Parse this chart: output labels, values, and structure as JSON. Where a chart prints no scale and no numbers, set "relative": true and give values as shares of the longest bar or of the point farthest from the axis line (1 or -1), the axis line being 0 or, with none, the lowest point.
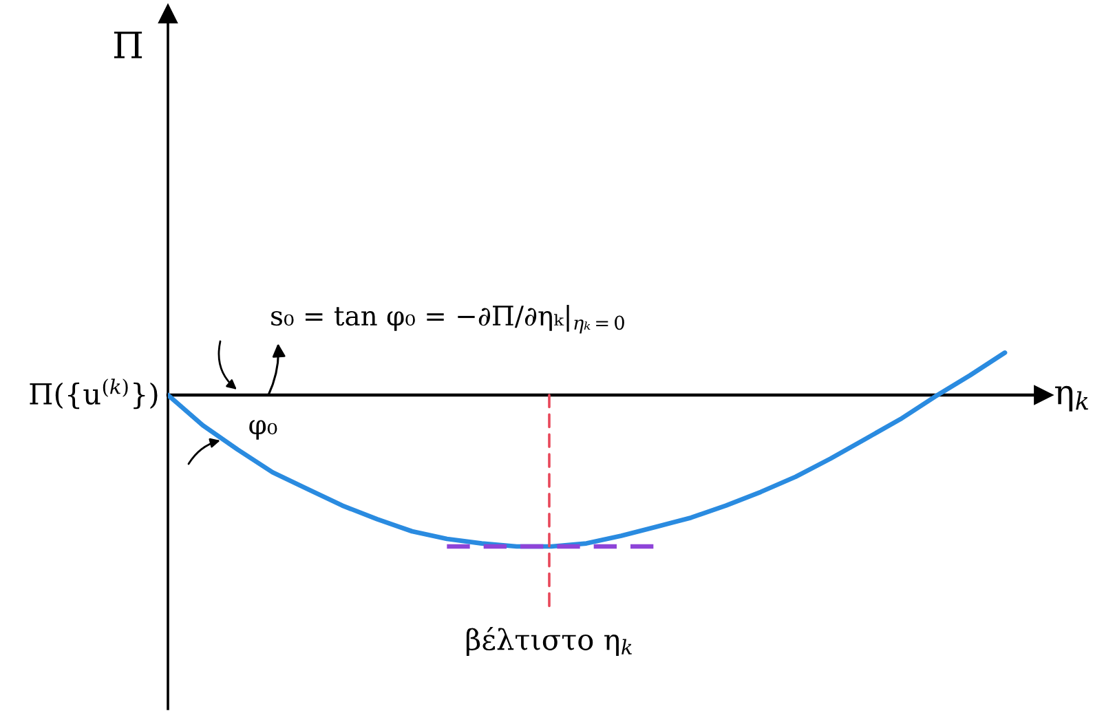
{
  "chart_data": {
    "type": "line",
    "relative": true,
    "xlabel": "η$_{k}$",
    "categories": [
      null,
      null,
      null,
      null,
      null,
      null,
      null,
      null,
      null,
      null,
      null,
      null,
      null,
      null,
      null,
      null,
      null,
      null,
      null,
      null,
      null,
      null,
      null,
      null,
      null
    ],
    "series": [
      {
        "color": "#2a8be0",
        "values": [
          0,
          -0.2,
          -0.36,
          -0.51,
          -0.62,
          -0.73,
          -0.82,
          -0.9,
          -0.95,
          -0.98,
          -1,
          -1,
          -0.98,
          -0.93,
          -0.87,
          -0.81,
          -0.73,
          -0.64,
          -0.54,
          -0.42,
          -0.29,
          -0.16,
          -0.01,
          0.13,
          0.28
        ]
      },
      {
        "color": "#8e44d8",
        "line_style": "dashed",
        "values": [
          null,
          null,
          null,
          null,
          null,
          null,
          null,
          null,
          -1,
          -1,
          -1,
          -1,
          -1,
          -1,
          -1,
          null,
          null,
          null,
          null,
          null,
          null,
          null,
          null,
          null,
          null
        ]
      }
    ],
    "annotations": [
      "Π",
      "s₀ = tan φ₀ = −∂Π/∂ηₖ|$_{ηₖ=0}$",
      "Π({u$^{(k)}$})",
      "φ₀",
      "βέλτιστο η$_{k}$"
    ]
  }
}
